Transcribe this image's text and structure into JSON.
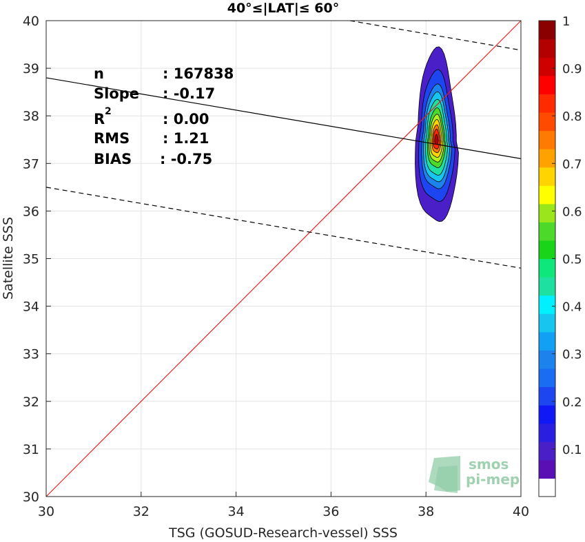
{
  "chart_data": {
    "type": "contour",
    "title": "40°≤|LAT|≤ 60°",
    "xlabel": "TSG (GOSUD-Research-vessel) SSS",
    "ylabel": "Satellite SSS",
    "xlim": [
      30,
      40
    ],
    "ylim": [
      30,
      40
    ],
    "xticks": [
      "30",
      "32",
      "34",
      "36",
      "38",
      "40"
    ],
    "yticks": [
      "30",
      "31",
      "32",
      "33",
      "34",
      "35",
      "36",
      "37",
      "38",
      "39",
      "40"
    ],
    "grid": true,
    "stats": {
      "n_label": "n",
      "n_value": ": 167838",
      "slope_label": "Slope",
      "slope_value": ": -0.17",
      "r2_label": "R",
      "r2_sup": "2",
      "r2_value": ": 0.00",
      "rms_label": "RMS",
      "rms_value": ": 1.21",
      "bias_label": "BIAS",
      "bias_value": ": -0.75"
    },
    "lines": {
      "identity": {
        "x": [
          30,
          40
        ],
        "y": [
          30,
          40
        ],
        "color": "#e8201f"
      },
      "regression": {
        "x": [
          30,
          40
        ],
        "y": [
          38.8,
          37.1
        ],
        "color": "#000000"
      },
      "upper_bound": {
        "x": [
          36.4,
          40
        ],
        "y": [
          40.0,
          39.38
        ],
        "color": "#000000",
        "dash": true
      },
      "lower_bound": {
        "x": [
          30,
          40
        ],
        "y": [
          36.5,
          34.8
        ],
        "color": "#000000",
        "dash": true
      }
    },
    "contours": {
      "center": [
        38.22,
        37.5
      ],
      "levels": [
        {
          "level": 0.05,
          "rx": 0.43,
          "ry": 1.75,
          "color": "#4b1fc8"
        },
        {
          "level": 0.15,
          "rx": 0.36,
          "ry": 1.32,
          "color": "#1e46f0"
        },
        {
          "level": 0.25,
          "rx": 0.3,
          "ry": 1.05,
          "color": "#1c82ec"
        },
        {
          "level": 0.35,
          "rx": 0.26,
          "ry": 0.9,
          "color": "#17c6ef"
        },
        {
          "level": 0.45,
          "rx": 0.22,
          "ry": 0.76,
          "color": "#1ee0a0"
        },
        {
          "level": 0.55,
          "rx": 0.18,
          "ry": 0.6,
          "color": "#4cd92a"
        },
        {
          "level": 0.62,
          "rx": 0.15,
          "ry": 0.48,
          "color": "#b6ef1c"
        },
        {
          "level": 0.7,
          "rx": 0.12,
          "ry": 0.38,
          "color": "#ffd400"
        },
        {
          "level": 0.78,
          "rx": 0.09,
          "ry": 0.28,
          "color": "#ff7a00"
        },
        {
          "level": 0.86,
          "rx": 0.065,
          "ry": 0.2,
          "color": "#ff2a00"
        },
        {
          "level": 0.95,
          "rx": 0.035,
          "ry": 0.1,
          "color": "#b50000"
        }
      ]
    },
    "colorbar": {
      "range": [
        0,
        1
      ],
      "ticks": [
        "0.1",
        "0.2",
        "0.3",
        "0.4",
        "0.5",
        "0.6",
        "0.7",
        "0.8",
        "0.9",
        "1"
      ],
      "bands": [
        "#ffffff",
        "#5a0fb4",
        "#4b1fc8",
        "#2a1fe0",
        "#0f18f5",
        "#1e46f0",
        "#1a6cf2",
        "#1c82ec",
        "#12a0f5",
        "#17c6ef",
        "#00f0ff",
        "#1ee0a0",
        "#0ee87a",
        "#1ad41a",
        "#4cd92a",
        "#9ae61a",
        "#ffff00",
        "#ffd400",
        "#ffa200",
        "#ff7a00",
        "#ff4a00",
        "#ff2a00",
        "#ff0000",
        "#d00000",
        "#b50000",
        "#8a0000"
      ]
    },
    "watermark": {
      "line1": "smos",
      "line2": "pi-mep"
    }
  }
}
